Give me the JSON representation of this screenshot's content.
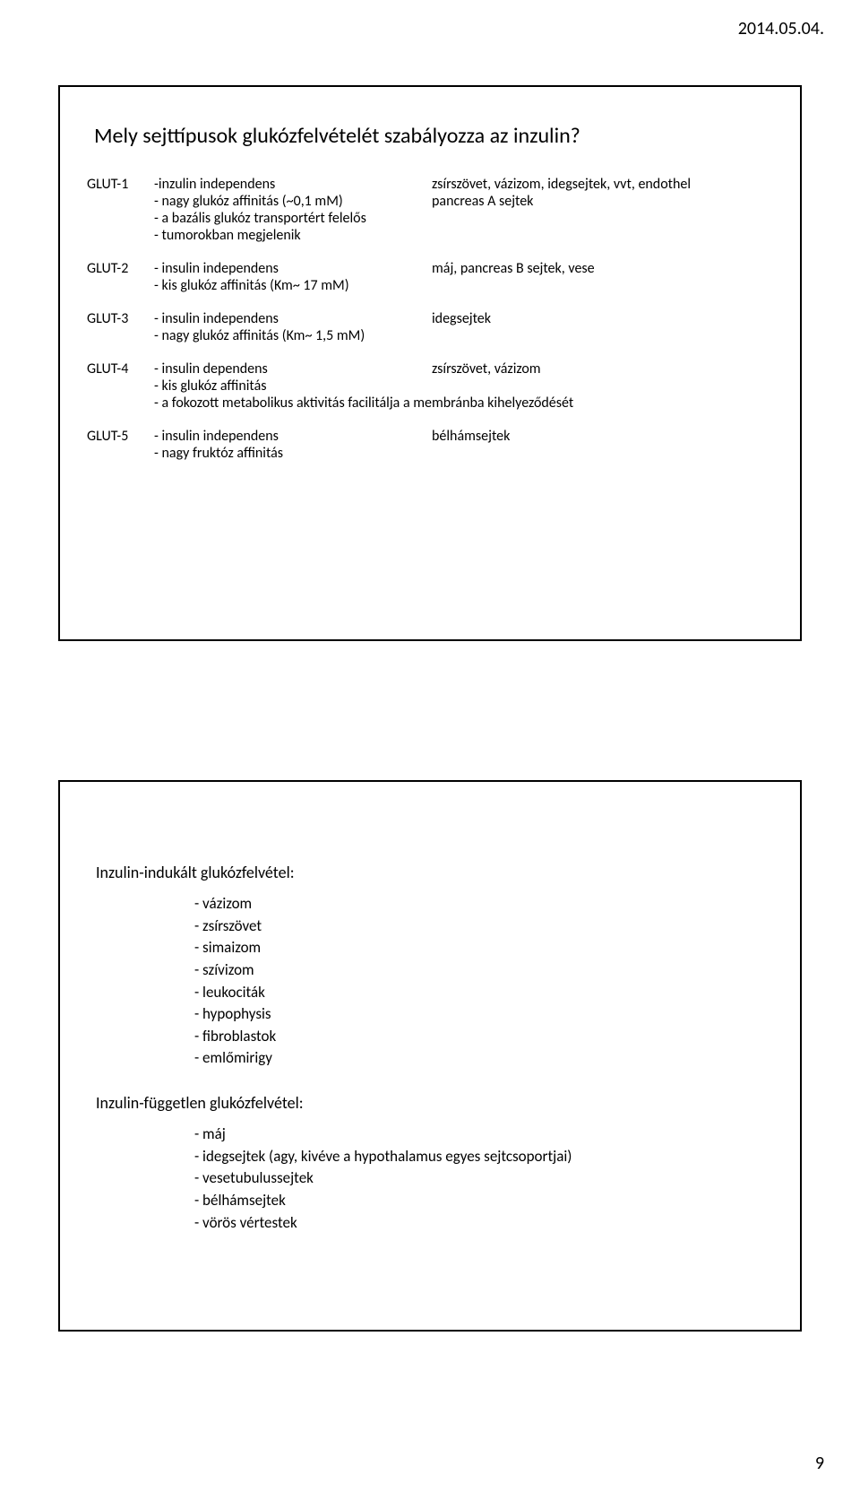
{
  "header": {
    "date": "2014.05.04."
  },
  "footer": {
    "pageNumber": "9"
  },
  "slide1": {
    "title": "Mely sejttípusok glukózfelvételét szabályozza az inzulin?",
    "rows": [
      {
        "label": "GLUT-1",
        "left": [
          "-inzulin independens",
          "- nagy glukóz affinitás (~0,1 mM)",
          "- a bazális glukóz transportért felelős",
          "- tumorokban megjelenik"
        ],
        "right": [
          "zsírszövet, vázizom, idegsejtek, vvt, endothel",
          "pancreas A sejtek"
        ]
      },
      {
        "label": "GLUT-2",
        "left": [
          "- insulin independens",
          "- kis glukóz affinitás (Km~ 17 mM)"
        ],
        "right": [
          "máj, pancreas B sejtek, vese"
        ]
      },
      {
        "label": "GLUT-3",
        "left": [
          "- insulin independens",
          "- nagy glukóz affinitás (Km~ 1,5 mM)"
        ],
        "right": [
          "idegsejtek"
        ]
      },
      {
        "label": "GLUT-4",
        "left": [
          "- insulin dependens",
          "- kis glukóz affinitás"
        ],
        "right": [
          "zsírszövet, vázizom"
        ],
        "full": "- a fokozott metabolikus aktivitás facilitálja a membránba kihelyeződését"
      },
      {
        "label": "GLUT-5",
        "left": [
          "- insulin independens",
          "- nagy fruktóz affinitás"
        ],
        "right": [
          "bélhámsejtek"
        ]
      }
    ]
  },
  "slide2": {
    "heading1": "Inzulin-indukált glukózfelvétel:",
    "list1": [
      "- vázizom",
      "- zsírszövet",
      "- simaizom",
      "- szívizom",
      "- leukociták",
      "- hypophysis",
      "- fibroblastok",
      "- emlőmirigy"
    ],
    "heading2": "Inzulin-független glukózfelvétel:",
    "list2": [
      "- máj",
      "- idegsejtek (agy, kivéve a hypothalamus egyes sejtcsoportjai)",
      "- vesetubulussejtek",
      "- bélhámsejtek",
      "- vörös vértestek"
    ]
  },
  "colors": {
    "background": "#ffffff",
    "text": "#000000",
    "border": "#000000"
  },
  "typography": {
    "font_family": "Calibri",
    "title_fontsize": 24,
    "body_fontsize": 16,
    "heading_fontsize": 18,
    "list_fontsize": 17,
    "date_fontsize": 20
  }
}
